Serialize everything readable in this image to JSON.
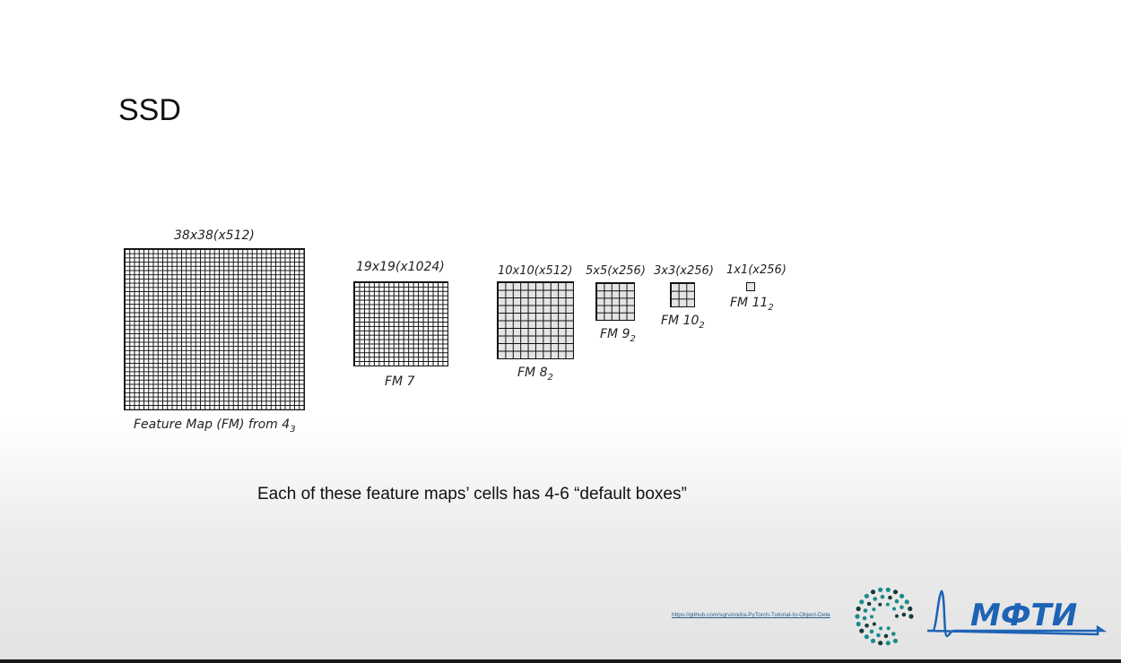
{
  "slide": {
    "title": "SSD",
    "note": "Each of these feature maps’ cells has 4-6 “default boxes”",
    "source_link": "https://github.com/sgrvinod/a-PyTorch-Tutorial-to-Object-Dete",
    "logo_text": "МФТИ"
  },
  "feature_maps": [
    {
      "size": "38x38(x512)",
      "cells": 38,
      "caption": "Feature Map (FM) from 4",
      "caption_sub": "3",
      "fill": "#ffffff"
    },
    {
      "size": "19x19(x1024)",
      "cells": 19,
      "caption": "FM 7",
      "caption_sub": "",
      "fill": "#ffffff"
    },
    {
      "size": "10x10(x512)",
      "cells": 10,
      "caption": "FM 8",
      "caption_sub": "2",
      "fill": "#e4e4e4"
    },
    {
      "size": "5x5(x256)",
      "cells": 5,
      "caption": "FM 9",
      "caption_sub": "2",
      "fill": "#e4e4e4"
    },
    {
      "size": "3x3(x256)",
      "cells": 3,
      "caption": "FM 10",
      "caption_sub": "2",
      "fill": "#e4e4e4"
    },
    {
      "size": "1x1(x256)",
      "cells": 1,
      "caption": "FM 11",
      "caption_sub": "2",
      "fill": "#e4e4e4"
    }
  ],
  "colors": {
    "logo_teal": "#1d8a8a",
    "logo_dark": "#143c3c",
    "logo_blue": "#1e63b5"
  }
}
